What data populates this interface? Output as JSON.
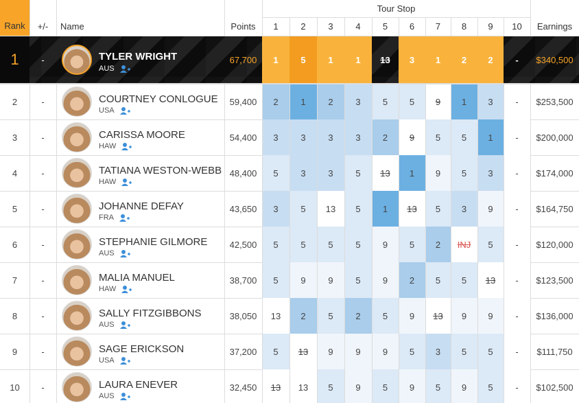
{
  "header": {
    "rank": "Rank",
    "change": "+/-",
    "name": "Name",
    "points": "Points",
    "tour_stop": "Tour Stop",
    "stops": [
      "1",
      "2",
      "3",
      "4",
      "5",
      "6",
      "7",
      "8",
      "9",
      "10"
    ],
    "earnings": "Earnings"
  },
  "result_colors": {
    "1": "#6cb0e2",
    "2": "#a9cdeb",
    "3": "#c7ddf2",
    "5": "#dce9f6",
    "9": "#f0f5fb",
    "13": "#ffffff",
    "INJ": "#ffffff",
    "-": "#ffffff"
  },
  "leader_cell_colors": [
    "#f9b33c",
    "#f39c1f",
    "#f9b33c",
    "#f9b33c",
    null,
    "#f9b33c",
    "#f9b33c",
    "#f9b33c",
    "#f9b33c",
    null
  ],
  "rows": [
    {
      "rank": "1",
      "change": "-",
      "name": "TYLER WRIGHT",
      "country": "AUS",
      "points": "67,700",
      "results": [
        "1",
        "5",
        "1",
        "1",
        "13",
        "3",
        "1",
        "2",
        "2",
        "-"
      ],
      "dropped": "5",
      "earnings": "$340,500"
    },
    {
      "rank": "2",
      "change": "-",
      "name": "COURTNEY CONLOGUE",
      "country": "USA",
      "points": "59,400",
      "results": [
        "2",
        "1",
        "2",
        "3",
        "5",
        "5",
        "9",
        "1",
        "3",
        "-"
      ],
      "dropped": "7",
      "earnings": "$253,500"
    },
    {
      "rank": "3",
      "change": "-",
      "name": "CARISSA MOORE",
      "country": "HAW",
      "points": "54,400",
      "results": [
        "3",
        "3",
        "3",
        "3",
        "2",
        "9",
        "5",
        "5",
        "1",
        "-"
      ],
      "dropped": "6",
      "earnings": "$200,000"
    },
    {
      "rank": "4",
      "change": "-",
      "name": "TATIANA WESTON-WEBB",
      "country": "HAW",
      "points": "48,400",
      "results": [
        "5",
        "3",
        "3",
        "5",
        "13",
        "1",
        "9",
        "5",
        "3",
        "-"
      ],
      "dropped": "5",
      "earnings": "$174,000"
    },
    {
      "rank": "5",
      "change": "-",
      "name": "JOHANNE DEFAY",
      "country": "FRA",
      "points": "43,650",
      "results": [
        "3",
        "5",
        "13",
        "5",
        "1",
        "13",
        "5",
        "3",
        "9",
        "-"
      ],
      "dropped": "6",
      "earnings": "$164,750"
    },
    {
      "rank": "6",
      "change": "-",
      "name": "STEPHANIE GILMORE",
      "country": "AUS",
      "points": "42,500",
      "results": [
        "5",
        "5",
        "5",
        "5",
        "9",
        "5",
        "2",
        "INJ",
        "5",
        "-"
      ],
      "dropped": "8",
      "earnings": "$120,000"
    },
    {
      "rank": "7",
      "change": "-",
      "name": "MALIA MANUEL",
      "country": "HAW",
      "points": "38,700",
      "results": [
        "5",
        "9",
        "9",
        "5",
        "9",
        "2",
        "5",
        "5",
        "13",
        "-"
      ],
      "dropped": "9",
      "earnings": "$123,500"
    },
    {
      "rank": "8",
      "change": "-",
      "name": "SALLY FITZGIBBONS",
      "country": "AUS",
      "points": "38,050",
      "results": [
        "13",
        "2",
        "5",
        "2",
        "5",
        "9",
        "13",
        "9",
        "9",
        "-"
      ],
      "dropped": "7",
      "earnings": "$136,000"
    },
    {
      "rank": "9",
      "change": "-",
      "name": "SAGE ERICKSON",
      "country": "USA",
      "points": "37,200",
      "results": [
        "5",
        "13",
        "9",
        "9",
        "9",
        "5",
        "3",
        "5",
        "5",
        "-"
      ],
      "dropped": "2",
      "earnings": "$111,750"
    },
    {
      "rank": "10",
      "change": "-",
      "name": "LAURA ENEVER",
      "country": "AUS",
      "points": "32,450",
      "results": [
        "13",
        "13",
        "5",
        "9",
        "5",
        "9",
        "5",
        "9",
        "5",
        "-"
      ],
      "dropped": "1",
      "earnings": "$102,500"
    }
  ]
}
